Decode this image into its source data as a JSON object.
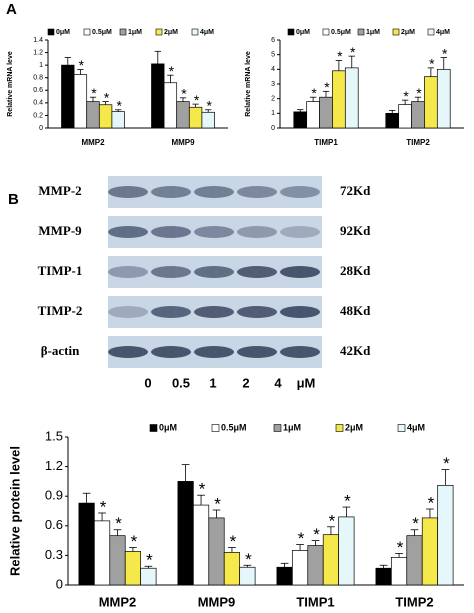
{
  "chart_data": [
    {
      "type": "bar",
      "ylabel": "Relative mRNA leve",
      "categories": [
        "MMP2",
        "MMP9"
      ],
      "ylim": [
        0,
        1.4
      ],
      "yticks": [
        0,
        0.2,
        0.4,
        0.6,
        0.8,
        1,
        1.2,
        1.4
      ],
      "sig_label": "*",
      "series": [
        {
          "name": "0μM",
          "color": "#000000",
          "values": [
            1.0,
            1.02
          ],
          "errors": [
            0.12,
            0.2
          ],
          "significant": false
        },
        {
          "name": "0.5μM",
          "color": "#ffffff",
          "values": [
            0.85,
            0.72
          ],
          "errors": [
            0.08,
            0.12
          ],
          "significant": true
        },
        {
          "name": "1μM",
          "color": "#a0a0a0",
          "values": [
            0.42,
            0.42
          ],
          "errors": [
            0.07,
            0.06
          ],
          "significant": true
        },
        {
          "name": "2μM",
          "color": "#f5e84a",
          "values": [
            0.37,
            0.33
          ],
          "errors": [
            0.05,
            0.05
          ],
          "significant": true
        },
        {
          "name": "4μM",
          "color": "#e6f7fb",
          "values": [
            0.26,
            0.25
          ],
          "errors": [
            0.03,
            0.04
          ],
          "significant": true
        }
      ]
    },
    {
      "type": "bar",
      "ylabel": "Relative mRNA leve",
      "categories": [
        "TIMP1",
        "TIMP2"
      ],
      "ylim": [
        0,
        6
      ],
      "yticks": [
        0,
        1,
        2,
        3,
        4,
        5,
        6
      ],
      "sig_label": "*",
      "series": [
        {
          "name": "0μM",
          "color": "#000000",
          "values": [
            1.1,
            1.0
          ],
          "errors": [
            0.15,
            0.2
          ],
          "significant": false
        },
        {
          "name": "0.5μM",
          "color": "#ffffff",
          "values": [
            1.8,
            1.6
          ],
          "errors": [
            0.3,
            0.3
          ],
          "significant": true
        },
        {
          "name": "1μM",
          "color": "#a0a0a0",
          "values": [
            2.1,
            1.8
          ],
          "errors": [
            0.4,
            0.3
          ],
          "significant": true
        },
        {
          "name": "2μM",
          "color": "#f5e84a",
          "values": [
            3.9,
            3.5
          ],
          "errors": [
            0.7,
            0.6
          ],
          "significant": true
        },
        {
          "name": "4μM",
          "color": "#e6f7fb",
          "values": [
            4.1,
            4.0
          ],
          "errors": [
            0.8,
            0.8
          ],
          "significant": true
        }
      ]
    },
    {
      "type": "bar",
      "ylabel": "Relative protein level",
      "categories": [
        "MMP2",
        "MMP9",
        "TIMP1",
        "TIMP2"
      ],
      "ylim": [
        0,
        1.5
      ],
      "yticks": [
        0,
        0.3,
        0.6,
        0.9,
        1.2,
        1.5
      ],
      "sig_label": "*",
      "series": [
        {
          "name": "0μM",
          "color": "#000000",
          "values": [
            0.83,
            1.05,
            0.18,
            0.17
          ],
          "errors": [
            0.1,
            0.17,
            0.04,
            0.03
          ],
          "significant": false
        },
        {
          "name": "0.5μM",
          "color": "#ffffff",
          "values": [
            0.65,
            0.81,
            0.35,
            0.28
          ],
          "errors": [
            0.08,
            0.1,
            0.06,
            0.04
          ],
          "significant": true
        },
        {
          "name": "1μM",
          "color": "#a0a0a0",
          "values": [
            0.5,
            0.68,
            0.4,
            0.5
          ],
          "errors": [
            0.06,
            0.08,
            0.05,
            0.06
          ],
          "significant": true
        },
        {
          "name": "2μM",
          "color": "#f5e84a",
          "values": [
            0.34,
            0.33,
            0.51,
            0.68
          ],
          "errors": [
            0.04,
            0.05,
            0.08,
            0.09
          ],
          "significant": true
        },
        {
          "name": "4μM",
          "color": "#e6f7fb",
          "values": [
            0.17,
            0.18,
            0.69,
            1.01
          ],
          "errors": [
            0.02,
            0.02,
            0.1,
            0.16
          ],
          "significant": true
        }
      ]
    }
  ],
  "panels": [
    "A",
    "B"
  ],
  "blot": {
    "rows": [
      {
        "protein": "MMP-2",
        "size": "72Kd"
      },
      {
        "protein": "MMP-9",
        "size": "92Kd"
      },
      {
        "protein": "TIMP-1",
        "size": "28Kd"
      },
      {
        "protein": "TIMP-2",
        "size": "48Kd"
      },
      {
        "protein": "β-actin",
        "size": "42Kd"
      }
    ],
    "lanes": [
      "0",
      "0.5",
      "1",
      "2",
      "4",
      "μM"
    ]
  }
}
